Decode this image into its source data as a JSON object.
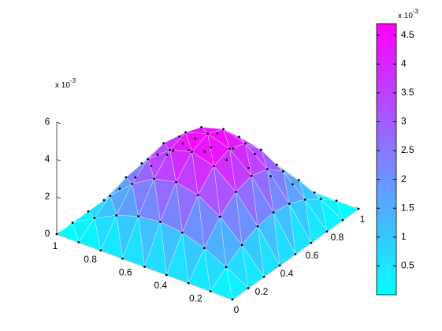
{
  "chart_data": {
    "type": "surface",
    "x": [
      0,
      0.125,
      0.25,
      0.375,
      0.5,
      0.625,
      0.75,
      0.875,
      1
    ],
    "y": [
      0,
      0.125,
      0.25,
      0.375,
      0.5,
      0.625,
      0.75,
      0.875,
      1
    ],
    "z": [
      [
        0,
        0,
        0,
        0,
        0,
        0,
        0,
        0,
        0
      ],
      [
        0,
        0.69,
        1.27,
        1.66,
        1.8,
        1.66,
        1.27,
        0.69,
        0
      ],
      [
        0,
        1.27,
        2.35,
        3.07,
        3.32,
        3.07,
        2.35,
        1.27,
        0
      ],
      [
        0,
        1.66,
        3.07,
        4.01,
        4.34,
        4.01,
        3.07,
        1.66,
        0
      ],
      [
        0,
        1.8,
        3.32,
        4.34,
        4.7,
        4.34,
        3.32,
        1.8,
        0
      ],
      [
        0,
        1.66,
        3.07,
        4.01,
        4.34,
        4.01,
        3.07,
        1.66,
        0
      ],
      [
        0,
        1.27,
        2.35,
        3.07,
        3.32,
        3.07,
        2.35,
        1.27,
        0
      ],
      [
        0,
        0.69,
        1.27,
        1.66,
        1.8,
        1.66,
        1.27,
        0.69,
        0
      ],
      [
        0,
        0,
        0,
        0,
        0,
        0,
        0,
        0,
        0
      ]
    ],
    "xlim": [
      0,
      1
    ],
    "xticks": [
      0,
      0.2,
      0.4,
      0.6,
      0.8,
      1
    ],
    "ylim": [
      0,
      1
    ],
    "yticks": [
      0,
      0.2,
      0.4,
      0.6,
      0.8,
      1
    ],
    "zlim": [
      0,
      6
    ],
    "zticks": [
      0,
      2,
      4,
      6
    ],
    "z_multiplier": {
      "base": "x 10",
      "exponent": "-3"
    },
    "colormap": [
      "#00ffff",
      "#ff00ff"
    ],
    "clim": [
      0,
      4.7
    ],
    "colorbar_ticks": [
      0.5,
      1,
      1.5,
      2,
      2.5,
      3,
      3.5,
      4,
      4.5
    ],
    "colorbar_multiplier": {
      "base": "x 10",
      "exponent": "-3"
    },
    "markers": true
  }
}
